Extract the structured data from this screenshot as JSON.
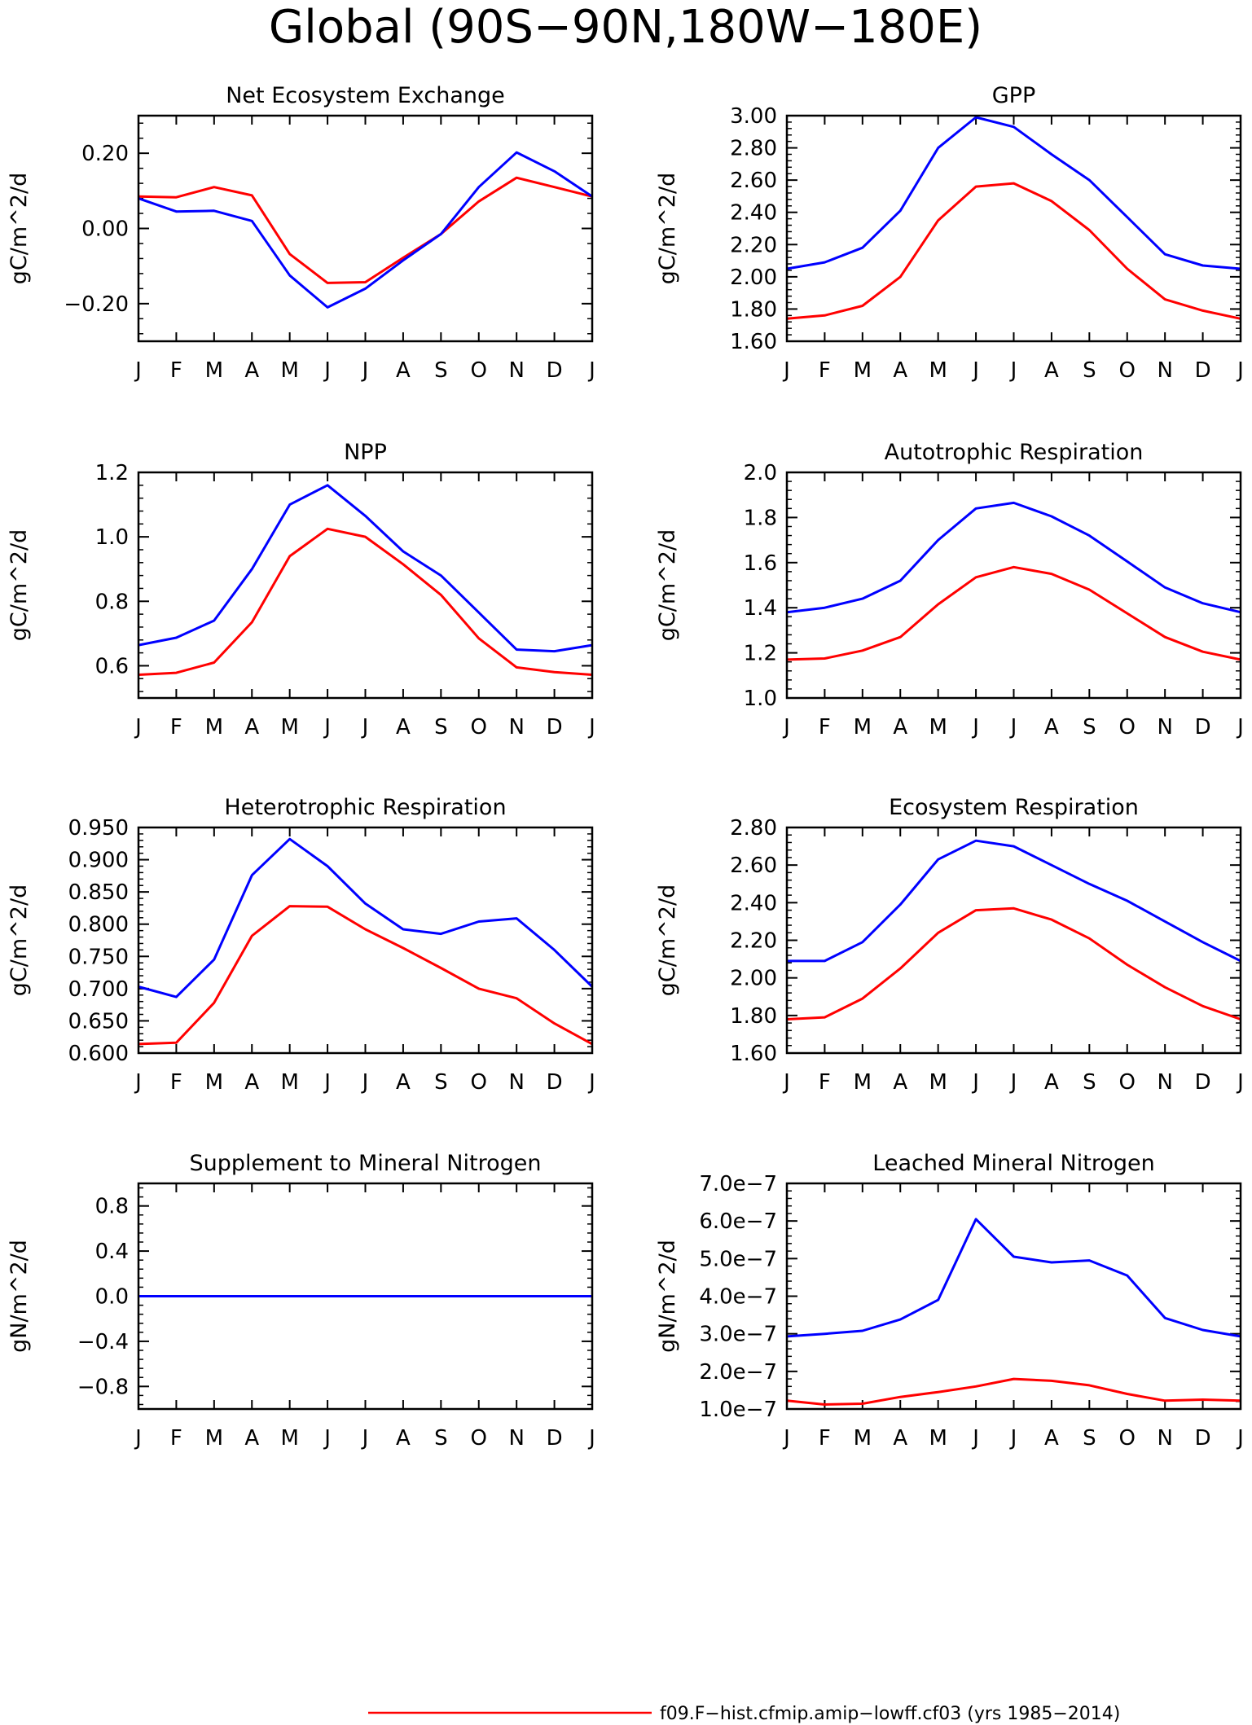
{
  "figure_title": "Global (90S−90N,180W−180E)",
  "legend": [
    {
      "label": "f09.F−hist.cfmip.amip−lowff.cf03 (yrs 1985−2014)",
      "color": "#ff0000"
    }
  ],
  "colors": {
    "red": "#ff0000",
    "blue": "#0000ff"
  },
  "chart_data": [
    {
      "type": "line",
      "title": "Net Ecosystem Exchange",
      "ylabel": "gC/m^2/d",
      "categories": [
        "J",
        "F",
        "M",
        "A",
        "M",
        "J",
        "J",
        "A",
        "S",
        "O",
        "N",
        "D",
        "J"
      ],
      "ylim": [
        -0.3,
        0.3
      ],
      "yticks": [
        -0.2,
        0.0,
        0.2
      ],
      "ytick_labels": [
        "−0.20",
        "0.00",
        "0.20"
      ],
      "series": [
        {
          "color": "#ff0000",
          "values": [
            0.085,
            0.083,
            0.11,
            0.088,
            -0.068,
            -0.145,
            -0.143,
            -0.078,
            -0.015,
            0.072,
            0.135,
            0.11,
            0.085
          ]
        },
        {
          "color": "#0000ff",
          "values": [
            0.08,
            0.045,
            0.047,
            0.02,
            -0.125,
            -0.21,
            -0.16,
            -0.085,
            -0.015,
            0.11,
            0.202,
            0.152,
            0.085
          ]
        }
      ]
    },
    {
      "type": "line",
      "title": "GPP",
      "ylabel": "gC/m^2/d",
      "categories": [
        "J",
        "F",
        "M",
        "A",
        "M",
        "J",
        "J",
        "A",
        "S",
        "O",
        "N",
        "D",
        "J"
      ],
      "ylim": [
        1.6,
        3.0
      ],
      "yticks": [
        1.6,
        1.8,
        2.0,
        2.2,
        2.4,
        2.6,
        2.8,
        3.0
      ],
      "ytick_labels": [
        "1.60",
        "1.80",
        "2.00",
        "2.20",
        "2.40",
        "2.60",
        "2.80",
        "3.00"
      ],
      "series": [
        {
          "color": "#ff0000",
          "values": [
            1.74,
            1.76,
            1.82,
            2.0,
            2.35,
            2.56,
            2.58,
            2.47,
            2.29,
            2.05,
            1.86,
            1.79,
            1.74
          ]
        },
        {
          "color": "#0000ff",
          "values": [
            2.05,
            2.09,
            2.18,
            2.41,
            2.8,
            2.99,
            2.93,
            2.76,
            2.6,
            2.37,
            2.14,
            2.07,
            2.05
          ]
        }
      ]
    },
    {
      "type": "line",
      "title": "NPP",
      "ylabel": "gC/m^2/d",
      "categories": [
        "J",
        "F",
        "M",
        "A",
        "M",
        "J",
        "J",
        "A",
        "S",
        "O",
        "N",
        "D",
        "J"
      ],
      "ylim": [
        0.5,
        1.2
      ],
      "yticks": [
        0.6,
        0.8,
        1.0,
        1.2
      ],
      "ytick_labels": [
        "0.6",
        "0.8",
        "1.0",
        "1.2"
      ],
      "series": [
        {
          "color": "#ff0000",
          "values": [
            0.572,
            0.578,
            0.61,
            0.735,
            0.94,
            1.025,
            1.0,
            0.915,
            0.82,
            0.685,
            0.595,
            0.58,
            0.572
          ]
        },
        {
          "color": "#0000ff",
          "values": [
            0.664,
            0.687,
            0.74,
            0.9,
            1.1,
            1.16,
            1.065,
            0.955,
            0.88,
            0.765,
            0.65,
            0.645,
            0.664
          ]
        }
      ]
    },
    {
      "type": "line",
      "title": "Autotrophic Respiration",
      "ylabel": "gC/m^2/d",
      "categories": [
        "J",
        "F",
        "M",
        "A",
        "M",
        "J",
        "J",
        "A",
        "S",
        "O",
        "N",
        "D",
        "J"
      ],
      "ylim": [
        1.0,
        2.0
      ],
      "yticks": [
        1.0,
        1.2,
        1.4,
        1.6,
        1.8,
        2.0
      ],
      "ytick_labels": [
        "1.0",
        "1.2",
        "1.4",
        "1.6",
        "1.8",
        "2.0"
      ],
      "series": [
        {
          "color": "#ff0000",
          "values": [
            1.17,
            1.175,
            1.21,
            1.27,
            1.415,
            1.535,
            1.58,
            1.55,
            1.48,
            1.375,
            1.27,
            1.205,
            1.17
          ]
        },
        {
          "color": "#0000ff",
          "values": [
            1.38,
            1.4,
            1.44,
            1.52,
            1.7,
            1.84,
            1.865,
            1.805,
            1.72,
            1.605,
            1.49,
            1.42,
            1.38
          ]
        }
      ]
    },
    {
      "type": "line",
      "title": "Heterotrophic Respiration",
      "ylabel": "gC/m^2/d",
      "categories": [
        "J",
        "F",
        "M",
        "A",
        "M",
        "J",
        "J",
        "A",
        "S",
        "O",
        "N",
        "D",
        "J"
      ],
      "ylim": [
        0.6,
        0.95
      ],
      "yticks": [
        0.6,
        0.65,
        0.7,
        0.75,
        0.8,
        0.85,
        0.9,
        0.95
      ],
      "ytick_labels": [
        "0.600",
        "0.650",
        "0.700",
        "0.750",
        "0.800",
        "0.850",
        "0.900",
        "0.950"
      ],
      "series": [
        {
          "color": "#ff0000",
          "values": [
            0.614,
            0.616,
            0.678,
            0.782,
            0.828,
            0.827,
            0.792,
            0.763,
            0.732,
            0.7,
            0.685,
            0.646,
            0.614
          ]
        },
        {
          "color": "#0000ff",
          "values": [
            0.703,
            0.687,
            0.745,
            0.876,
            0.932,
            0.89,
            0.832,
            0.792,
            0.785,
            0.804,
            0.809,
            0.76,
            0.703
          ]
        }
      ]
    },
    {
      "type": "line",
      "title": "Ecosystem Respiration",
      "ylabel": "gC/m^2/d",
      "categories": [
        "J",
        "F",
        "M",
        "A",
        "M",
        "J",
        "J",
        "A",
        "S",
        "O",
        "N",
        "D",
        "J"
      ],
      "ylim": [
        1.6,
        2.8
      ],
      "yticks": [
        1.6,
        1.8,
        2.0,
        2.2,
        2.4,
        2.6,
        2.8
      ],
      "ytick_labels": [
        "1.60",
        "1.80",
        "2.00",
        "2.20",
        "2.40",
        "2.60",
        "2.80"
      ],
      "series": [
        {
          "color": "#ff0000",
          "values": [
            1.78,
            1.79,
            1.89,
            2.05,
            2.24,
            2.36,
            2.37,
            2.31,
            2.21,
            2.07,
            1.95,
            1.85,
            1.78
          ]
        },
        {
          "color": "#0000ff",
          "values": [
            2.09,
            2.09,
            2.19,
            2.39,
            2.63,
            2.73,
            2.7,
            2.6,
            2.5,
            2.41,
            2.3,
            2.19,
            2.09
          ]
        }
      ]
    },
    {
      "type": "line",
      "title": "Supplement to Mineral Nitrogen",
      "ylabel": "gN/m^2/d",
      "categories": [
        "J",
        "F",
        "M",
        "A",
        "M",
        "J",
        "J",
        "A",
        "S",
        "O",
        "N",
        "D",
        "J"
      ],
      "ylim": [
        -1.0,
        1.0
      ],
      "yticks": [
        -0.8,
        -0.4,
        0.0,
        0.4,
        0.8
      ],
      "ytick_labels": [
        "−0.8",
        "−0.4",
        "0.0",
        "0.4",
        "0.8"
      ],
      "series": [
        {
          "color": "#ff0000",
          "values": [
            0,
            0,
            0,
            0,
            0,
            0,
            0,
            0,
            0,
            0,
            0,
            0,
            0
          ]
        },
        {
          "color": "#0000ff",
          "values": [
            0,
            0,
            0,
            0,
            0,
            0,
            0,
            0,
            0,
            0,
            0,
            0,
            0
          ]
        }
      ]
    },
    {
      "type": "line",
      "title": "Leached Mineral Nitrogen",
      "ylabel": "gN/m^2/d",
      "categories": [
        "J",
        "F",
        "M",
        "A",
        "M",
        "J",
        "J",
        "A",
        "S",
        "O",
        "N",
        "D",
        "J"
      ],
      "ylim": [
        1e-07,
        7e-07
      ],
      "yticks": [
        1e-07,
        2e-07,
        3e-07,
        4e-07,
        5e-07,
        6e-07,
        7e-07
      ],
      "ytick_labels": [
        "1.0e−7",
        "2.0e−7",
        "3.0e−7",
        "4.0e−7",
        "5.0e−7",
        "6.0e−7",
        "7.0e−7"
      ],
      "series": [
        {
          "color": "#ff0000",
          "values": [
            1.22e-07,
            1.12e-07,
            1.14e-07,
            1.32e-07,
            1.45e-07,
            1.6e-07,
            1.8e-07,
            1.75e-07,
            1.63e-07,
            1.4e-07,
            1.22e-07,
            1.25e-07,
            1.22e-07
          ]
        },
        {
          "color": "#0000ff",
          "values": [
            2.93e-07,
            3e-07,
            3.08e-07,
            3.38e-07,
            3.9e-07,
            6.05e-07,
            5.05e-07,
            4.9e-07,
            4.95e-07,
            4.55e-07,
            3.42e-07,
            3.1e-07,
            2.93e-07
          ]
        }
      ]
    }
  ]
}
